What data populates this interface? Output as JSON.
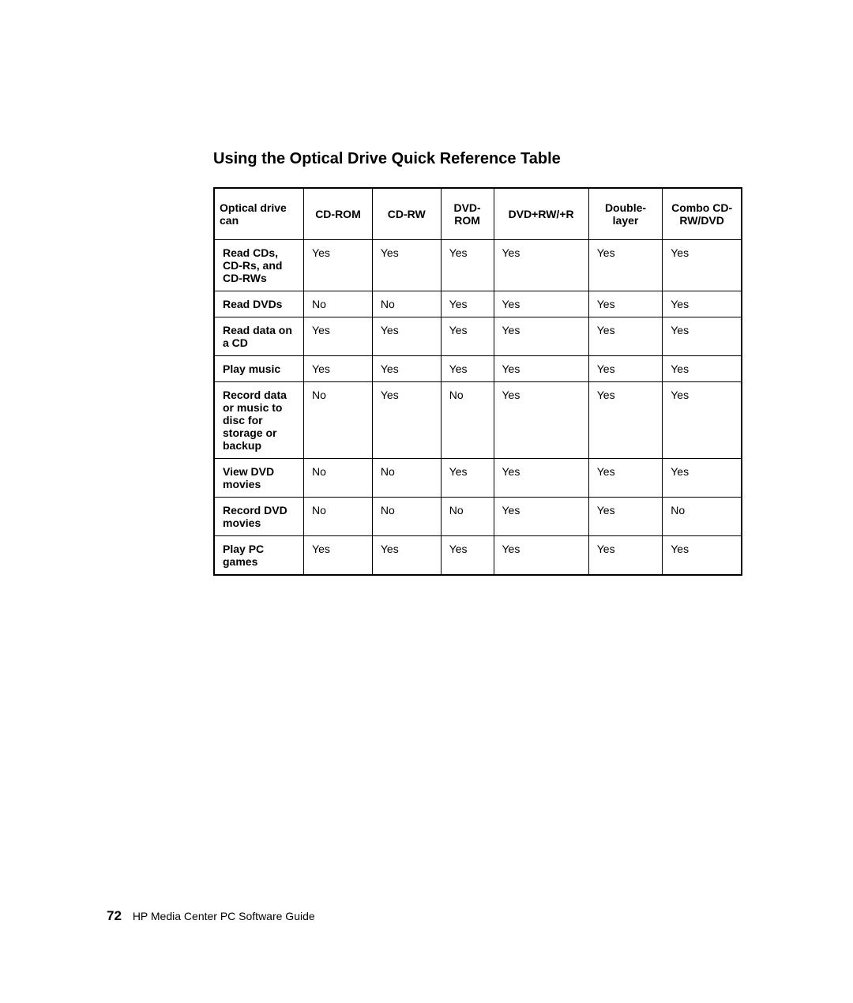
{
  "heading": "Using the Optical Drive Quick Reference Table",
  "table": {
    "columns": [
      "Optical drive can",
      "CD-ROM",
      "CD-RW",
      "DVD-ROM",
      "DVD+RW/+R",
      "Double-layer",
      "Combo CD-RW/DVD"
    ],
    "rows": [
      {
        "label": "Read CDs, CD-Rs, and CD-RWs",
        "cells": [
          "Yes",
          "Yes",
          "Yes",
          "Yes",
          "Yes",
          "Yes"
        ]
      },
      {
        "label": "Read DVDs",
        "cells": [
          "No",
          "No",
          "Yes",
          "Yes",
          "Yes",
          "Yes"
        ]
      },
      {
        "label": "Read data on a CD",
        "cells": [
          "Yes",
          "Yes",
          "Yes",
          "Yes",
          "Yes",
          "Yes"
        ]
      },
      {
        "label": "Play music",
        "cells": [
          "Yes",
          "Yes",
          "Yes",
          "Yes",
          "Yes",
          "Yes"
        ]
      },
      {
        "label": "Record data or music to disc for storage or backup",
        "cells": [
          "No",
          "Yes",
          "No",
          "Yes",
          "Yes",
          "Yes"
        ]
      },
      {
        "label": "View DVD movies",
        "cells": [
          "No",
          "No",
          "Yes",
          "Yes",
          "Yes",
          "Yes"
        ]
      },
      {
        "label": "Record DVD movies",
        "cells": [
          "No",
          "No",
          "No",
          "Yes",
          "Yes",
          "No"
        ]
      },
      {
        "label": "Play PC games",
        "cells": [
          "Yes",
          "Yes",
          "Yes",
          "Yes",
          "Yes",
          "Yes"
        ]
      }
    ],
    "col_widths_percent": [
      17,
      13,
      13,
      10,
      18,
      14,
      15
    ],
    "header_align": "center",
    "cell_align": "left",
    "border_color": "#000000",
    "background_color": "#ffffff",
    "header_fontsize": 14,
    "cell_fontsize": 14
  },
  "footer": {
    "page_number": "72",
    "title": "HP Media Center PC Software Guide"
  }
}
